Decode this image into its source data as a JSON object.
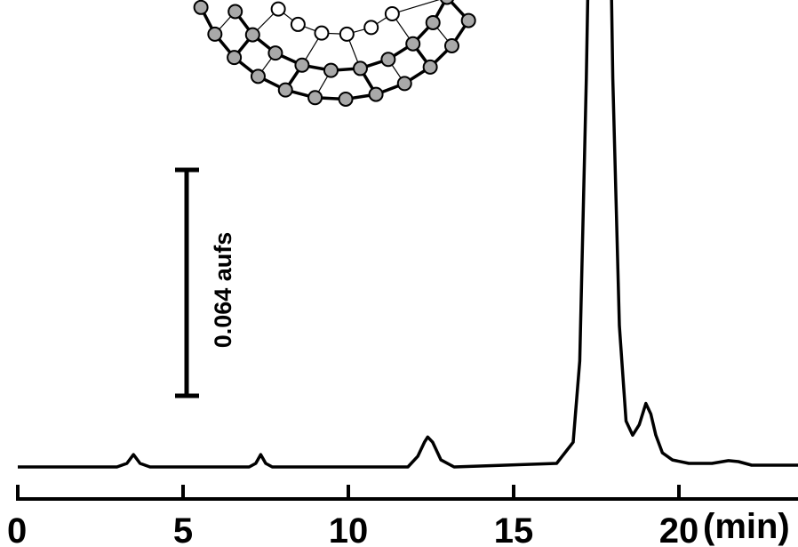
{
  "chart_data": {
    "type": "line",
    "title": "",
    "xlabel": "(min)",
    "ylabel": "",
    "xlim": [
      0,
      23.8
    ],
    "x_ticks": [
      0,
      5,
      10,
      15,
      20
    ],
    "x_tick_labels": [
      "0",
      "5",
      "10",
      "15",
      "20"
    ],
    "y_units": "aufs",
    "scale_bar": {
      "label": "0.064 aufs",
      "value": 0.064
    },
    "grid": false,
    "series": [
      {
        "x": [
          0,
          3.0,
          3.3,
          3.5,
          3.7,
          4.0,
          7.0,
          7.2,
          7.35,
          7.5,
          7.7,
          11.8,
          12.1,
          12.3,
          12.4,
          12.55,
          12.8,
          13.2,
          16.3,
          16.8,
          17.0,
          17.2,
          17.35,
          17.5,
          17.6,
          17.7,
          17.85,
          18.0,
          18.2,
          18.4,
          18.6,
          18.8,
          19.0,
          19.15,
          19.3,
          19.5,
          19.8,
          20.3,
          21.0,
          21.5,
          21.8,
          22.2,
          23.8
        ],
        "y": [
          0,
          0,
          0.001,
          0.0035,
          0.001,
          0,
          0,
          0.001,
          0.0035,
          0.001,
          0,
          0,
          0.003,
          0.007,
          0.0085,
          0.007,
          0.002,
          0,
          0.001,
          0.007,
          0.03,
          0.11,
          0.19,
          0.245,
          0.257,
          0.25,
          0.2,
          0.11,
          0.04,
          0.013,
          0.009,
          0.012,
          0.018,
          0.015,
          0.009,
          0.004,
          0.002,
          0.001,
          0.001,
          0.0018,
          0.0015,
          0.0005,
          0.0005
        ]
      }
    ]
  },
  "molecule_label": "C60 fullerene structure"
}
